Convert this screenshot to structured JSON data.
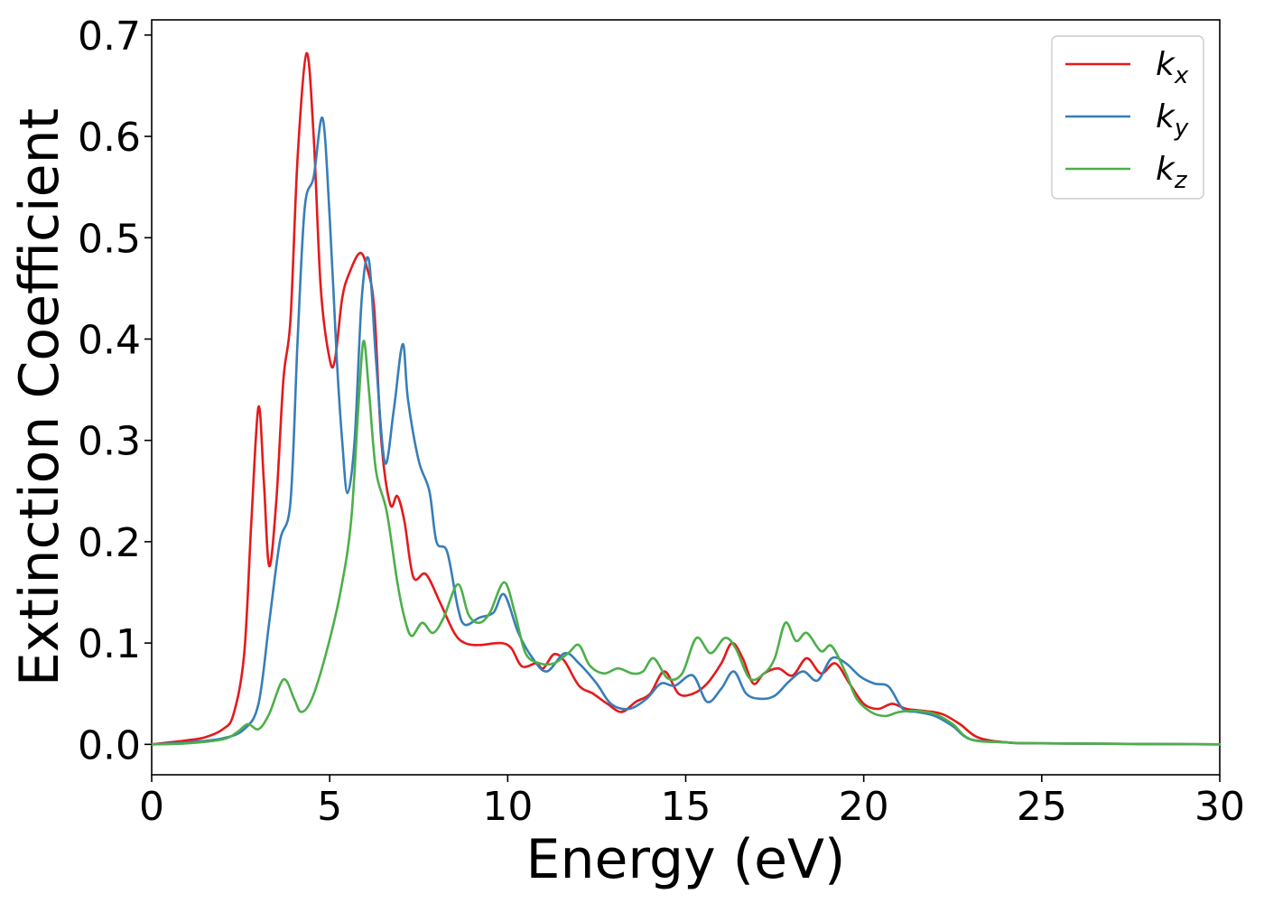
{
  "chart_data": {
    "type": "line",
    "xlabel": "Energy (eV)",
    "ylabel": "Extinction Coefficient",
    "xlim": [
      0,
      30
    ],
    "ylim": [
      -0.03,
      0.715
    ],
    "xticks": [
      0,
      5,
      10,
      15,
      20,
      25,
      30
    ],
    "yticks": [
      0.0,
      0.1,
      0.2,
      0.3,
      0.4,
      0.5,
      0.6,
      0.7
    ],
    "xtick_labels": [
      "0",
      "5",
      "10",
      "15",
      "20",
      "25",
      "30"
    ],
    "ytick_labels": [
      "0.0",
      "0.1",
      "0.2",
      "0.3",
      "0.4",
      "0.5",
      "0.6",
      "0.7"
    ],
    "grid": false,
    "legend_position": "top-right",
    "series": [
      {
        "name": "k_x",
        "name_base": "k",
        "name_sub": "x",
        "color": "#e41a1c",
        "points": [
          [
            0,
            0
          ],
          [
            1,
            0.004
          ],
          [
            1.5,
            0.007
          ],
          [
            2,
            0.015
          ],
          [
            2.3,
            0.03
          ],
          [
            2.6,
            0.09
          ],
          [
            2.8,
            0.22
          ],
          [
            3.0,
            0.333
          ],
          [
            3.15,
            0.26
          ],
          [
            3.3,
            0.176
          ],
          [
            3.5,
            0.24
          ],
          [
            3.7,
            0.36
          ],
          [
            3.9,
            0.42
          ],
          [
            4.1,
            0.58
          ],
          [
            4.35,
            0.682
          ],
          [
            4.55,
            0.6
          ],
          [
            4.75,
            0.45
          ],
          [
            5.0,
            0.38
          ],
          [
            5.15,
            0.38
          ],
          [
            5.35,
            0.44
          ],
          [
            5.55,
            0.465
          ],
          [
            5.85,
            0.485
          ],
          [
            6.05,
            0.47
          ],
          [
            6.25,
            0.43
          ],
          [
            6.45,
            0.3
          ],
          [
            6.7,
            0.237
          ],
          [
            6.9,
            0.245
          ],
          [
            7.1,
            0.22
          ],
          [
            7.35,
            0.165
          ],
          [
            7.7,
            0.168
          ],
          [
            8.1,
            0.14
          ],
          [
            8.5,
            0.11
          ],
          [
            8.8,
            0.1
          ],
          [
            9.2,
            0.098
          ],
          [
            9.8,
            0.1
          ],
          [
            10.1,
            0.095
          ],
          [
            10.4,
            0.077
          ],
          [
            10.8,
            0.08
          ],
          [
            11.0,
            0.075
          ],
          [
            11.3,
            0.089
          ],
          [
            11.6,
            0.082
          ],
          [
            12.0,
            0.058
          ],
          [
            12.4,
            0.05
          ],
          [
            12.8,
            0.04
          ],
          [
            13.2,
            0.032
          ],
          [
            13.6,
            0.042
          ],
          [
            14.0,
            0.05
          ],
          [
            14.4,
            0.072
          ],
          [
            14.8,
            0.05
          ],
          [
            15.2,
            0.05
          ],
          [
            15.6,
            0.06
          ],
          [
            16.0,
            0.08
          ],
          [
            16.3,
            0.1
          ],
          [
            16.6,
            0.085
          ],
          [
            16.9,
            0.06
          ],
          [
            17.2,
            0.07
          ],
          [
            17.6,
            0.075
          ],
          [
            18.0,
            0.068
          ],
          [
            18.4,
            0.085
          ],
          [
            18.8,
            0.07
          ],
          [
            19.2,
            0.08
          ],
          [
            19.6,
            0.06
          ],
          [
            20.0,
            0.04
          ],
          [
            20.4,
            0.035
          ],
          [
            20.8,
            0.04
          ],
          [
            21.2,
            0.035
          ],
          [
            21.7,
            0.033
          ],
          [
            22.2,
            0.03
          ],
          [
            22.7,
            0.02
          ],
          [
            23.2,
            0.007
          ],
          [
            24,
            0.002
          ],
          [
            25,
            0.001
          ],
          [
            30,
            0
          ]
        ]
      },
      {
        "name": "k_y",
        "name_base": "k",
        "name_sub": "y",
        "color": "#377eb8",
        "points": [
          [
            0,
            0
          ],
          [
            1,
            0.002
          ],
          [
            2,
            0.006
          ],
          [
            2.6,
            0.015
          ],
          [
            3.0,
            0.04
          ],
          [
            3.3,
            0.12
          ],
          [
            3.6,
            0.2
          ],
          [
            3.9,
            0.24
          ],
          [
            4.1,
            0.4
          ],
          [
            4.3,
            0.53
          ],
          [
            4.55,
            0.56
          ],
          [
            4.8,
            0.618
          ],
          [
            5.0,
            0.52
          ],
          [
            5.2,
            0.38
          ],
          [
            5.35,
            0.3
          ],
          [
            5.5,
            0.248
          ],
          [
            5.7,
            0.3
          ],
          [
            5.9,
            0.44
          ],
          [
            6.1,
            0.478
          ],
          [
            6.3,
            0.38
          ],
          [
            6.55,
            0.278
          ],
          [
            6.8,
            0.33
          ],
          [
            7.05,
            0.395
          ],
          [
            7.2,
            0.34
          ],
          [
            7.5,
            0.28
          ],
          [
            7.8,
            0.25
          ],
          [
            8.0,
            0.2
          ],
          [
            8.3,
            0.19
          ],
          [
            8.6,
            0.135
          ],
          [
            8.8,
            0.118
          ],
          [
            9.2,
            0.125
          ],
          [
            9.6,
            0.13
          ],
          [
            9.9,
            0.148
          ],
          [
            10.3,
            0.11
          ],
          [
            10.7,
            0.085
          ],
          [
            11.1,
            0.072
          ],
          [
            11.6,
            0.09
          ],
          [
            12.0,
            0.08
          ],
          [
            12.5,
            0.06
          ],
          [
            12.9,
            0.04
          ],
          [
            13.4,
            0.035
          ],
          [
            13.9,
            0.045
          ],
          [
            14.3,
            0.06
          ],
          [
            14.7,
            0.058
          ],
          [
            15.2,
            0.068
          ],
          [
            15.6,
            0.042
          ],
          [
            16.0,
            0.055
          ],
          [
            16.35,
            0.072
          ],
          [
            16.7,
            0.05
          ],
          [
            17.1,
            0.045
          ],
          [
            17.5,
            0.048
          ],
          [
            17.9,
            0.062
          ],
          [
            18.3,
            0.072
          ],
          [
            18.7,
            0.063
          ],
          [
            19.1,
            0.085
          ],
          [
            19.5,
            0.08
          ],
          [
            19.9,
            0.067
          ],
          [
            20.3,
            0.06
          ],
          [
            20.7,
            0.057
          ],
          [
            21.1,
            0.035
          ],
          [
            21.5,
            0.032
          ],
          [
            22.0,
            0.028
          ],
          [
            22.5,
            0.018
          ],
          [
            23.0,
            0.005
          ],
          [
            24,
            0.002
          ],
          [
            25,
            0.001
          ],
          [
            30,
            0
          ]
        ]
      },
      {
        "name": "k_z",
        "name_base": "k",
        "name_sub": "z",
        "color": "#4daf4a",
        "points": [
          [
            0,
            0
          ],
          [
            1,
            0.001
          ],
          [
            2,
            0.005
          ],
          [
            2.4,
            0.012
          ],
          [
            2.7,
            0.02
          ],
          [
            3.0,
            0.015
          ],
          [
            3.3,
            0.03
          ],
          [
            3.7,
            0.064
          ],
          [
            4.0,
            0.045
          ],
          [
            4.2,
            0.032
          ],
          [
            4.5,
            0.045
          ],
          [
            4.9,
            0.09
          ],
          [
            5.3,
            0.15
          ],
          [
            5.6,
            0.22
          ],
          [
            5.8,
            0.33
          ],
          [
            5.95,
            0.398
          ],
          [
            6.1,
            0.35
          ],
          [
            6.3,
            0.27
          ],
          [
            6.6,
            0.23
          ],
          [
            6.9,
            0.16
          ],
          [
            7.1,
            0.125
          ],
          [
            7.3,
            0.107
          ],
          [
            7.6,
            0.12
          ],
          [
            7.9,
            0.11
          ],
          [
            8.2,
            0.125
          ],
          [
            8.6,
            0.158
          ],
          [
            8.9,
            0.128
          ],
          [
            9.2,
            0.12
          ],
          [
            9.5,
            0.13
          ],
          [
            9.9,
            0.16
          ],
          [
            10.2,
            0.13
          ],
          [
            10.5,
            0.09
          ],
          [
            10.9,
            0.08
          ],
          [
            11.3,
            0.08
          ],
          [
            11.7,
            0.09
          ],
          [
            12.0,
            0.098
          ],
          [
            12.3,
            0.078
          ],
          [
            12.7,
            0.07
          ],
          [
            13.1,
            0.075
          ],
          [
            13.5,
            0.07
          ],
          [
            13.8,
            0.072
          ],
          [
            14.1,
            0.085
          ],
          [
            14.5,
            0.065
          ],
          [
            14.9,
            0.07
          ],
          [
            15.3,
            0.105
          ],
          [
            15.7,
            0.09
          ],
          [
            16.1,
            0.105
          ],
          [
            16.4,
            0.095
          ],
          [
            16.8,
            0.065
          ],
          [
            17.2,
            0.07
          ],
          [
            17.5,
            0.085
          ],
          [
            17.8,
            0.12
          ],
          [
            18.1,
            0.102
          ],
          [
            18.4,
            0.11
          ],
          [
            18.8,
            0.092
          ],
          [
            19.1,
            0.097
          ],
          [
            19.5,
            0.07
          ],
          [
            19.8,
            0.045
          ],
          [
            20.2,
            0.032
          ],
          [
            20.6,
            0.028
          ],
          [
            21.0,
            0.032
          ],
          [
            21.5,
            0.033
          ],
          [
            22.0,
            0.03
          ],
          [
            22.5,
            0.02
          ],
          [
            23.0,
            0.005
          ],
          [
            24,
            0.002
          ],
          [
            25,
            0.001
          ],
          [
            30,
            0
          ]
        ]
      }
    ]
  }
}
